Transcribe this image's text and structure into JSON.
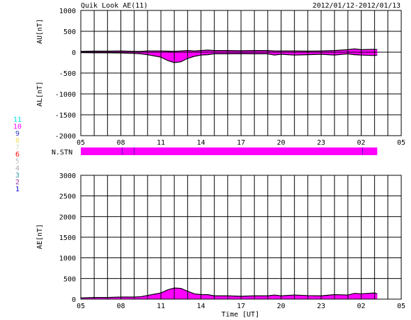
{
  "header": {
    "title": "Quik Look AE(11)",
    "date_range": "2012/01/12-2012/01/13"
  },
  "colors": {
    "fill": "#ff00ff",
    "outline": "#000000",
    "grid": "#000000",
    "background": "#ffffff"
  },
  "station_legend": [
    {
      "num": "11",
      "color": "#00e0e0"
    },
    {
      "num": "10",
      "color": "#ff00ff"
    },
    {
      "num": "9",
      "color": "#3333cc"
    },
    {
      "num": "8",
      "color": "#f0e060"
    },
    {
      "num": "7",
      "color": "#c8e0c8"
    },
    {
      "num": "6",
      "color": "#ff0000"
    },
    {
      "num": "5",
      "color": "#c0c0c0"
    },
    {
      "num": "4",
      "color": "#aaaaaa"
    },
    {
      "num": "3",
      "color": "#3399aa"
    },
    {
      "num": "2",
      "color": "#993399"
    },
    {
      "num": "1",
      "color": "#0000cc"
    }
  ],
  "stn_label": "N.STN",
  "x_tick_labels": [
    "05",
    "08",
    "11",
    "14",
    "17",
    "20",
    "23",
    "02",
    "05"
  ],
  "x_title": "Time [UT]",
  "chart_data": [
    {
      "type": "area",
      "title": "AU/AL",
      "ylabel_top": "AU[nT]",
      "ylabel_bottom": "AL[nT]",
      "ylim": [
        -2000,
        1000
      ],
      "y_ticks": [
        1000,
        500,
        0,
        -500,
        -1000,
        -1500,
        -2000
      ],
      "x_range_hours_ut": [
        5,
        29
      ],
      "grid": true,
      "x_hours": [
        5.0,
        6.0,
        7.0,
        8.0,
        9.0,
        9.5,
        10.0,
        10.5,
        11.0,
        11.5,
        12.0,
        12.5,
        13.0,
        13.5,
        14.0,
        14.5,
        15.0,
        16.0,
        17.0,
        18.0,
        19.0,
        19.5,
        20.0,
        21.0,
        22.0,
        23.0,
        24.0,
        25.0,
        25.5,
        26.0,
        27.0,
        27.2
      ],
      "au": [
        20,
        25,
        25,
        30,
        20,
        20,
        30,
        30,
        30,
        25,
        20,
        30,
        40,
        30,
        40,
        50,
        40,
        40,
        35,
        40,
        40,
        30,
        30,
        30,
        25,
        30,
        40,
        60,
        80,
        60,
        70,
        60
      ],
      "al": [
        -10,
        -15,
        -15,
        -20,
        -30,
        -40,
        -60,
        -90,
        -120,
        -200,
        -250,
        -230,
        -150,
        -100,
        -70,
        -60,
        -40,
        -40,
        -35,
        -40,
        -40,
        -70,
        -50,
        -70,
        -60,
        -50,
        -70,
        -40,
        -60,
        -70,
        -80,
        -70
      ]
    },
    {
      "type": "area",
      "title": "AE",
      "ylabel": "AE[nT]",
      "ylim": [
        0,
        3000
      ],
      "y_ticks": [
        3000,
        2500,
        2000,
        1500,
        1000,
        500,
        0
      ],
      "x_range_hours_ut": [
        5,
        29
      ],
      "grid": true,
      "x_hours": [
        5.0,
        6.0,
        7.0,
        8.0,
        9.0,
        9.5,
        10.0,
        10.5,
        11.0,
        11.5,
        12.0,
        12.5,
        13.0,
        13.5,
        14.0,
        14.5,
        15.0,
        16.0,
        17.0,
        18.0,
        19.0,
        19.5,
        20.0,
        21.0,
        22.0,
        23.0,
        24.0,
        25.0,
        25.5,
        26.0,
        27.0,
        27.2
      ],
      "ae": [
        30,
        40,
        40,
        50,
        50,
        60,
        90,
        120,
        150,
        225,
        270,
        260,
        190,
        130,
        110,
        110,
        80,
        80,
        70,
        80,
        80,
        100,
        80,
        100,
        85,
        80,
        110,
        100,
        140,
        130,
        150,
        130
      ]
    }
  ],
  "stn_bar": {
    "x_range_hours_ut": [
      5,
      27.2
    ],
    "color": "#ff00ff",
    "marker_hours": [
      8.1,
      9.0,
      26.1
    ]
  }
}
